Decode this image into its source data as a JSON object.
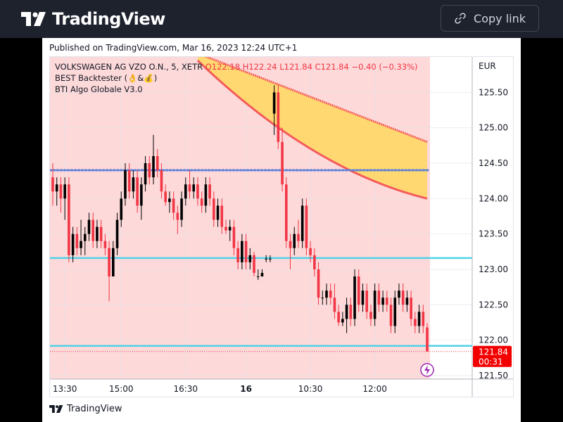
{
  "header": {
    "brand": "TradingView",
    "copy_link": "Copy link"
  },
  "published": "Published on TradingView.com, Mar 16, 2023 12:24 UTC+1",
  "footer": {
    "brand": "TradingView"
  },
  "legend": {
    "symbol": "VOLKSWAGEN AG VZO O.N., 5, XETR",
    "ohlc": "O122.18 H122.24 L121.84 C121.84 −0.40 (−0.33%)",
    "indicator1": "BEST Backtester (👌&💰)",
    "indicator2": "BTI Algo Globale V3.0"
  },
  "colors": {
    "up": "#000000",
    "down": "#f23645",
    "band": "#ffd75e",
    "band_line": "#f45b5b",
    "dotted": "#5b7fd9",
    "hline": "#4fd2e8",
    "bg_shade": "#fdd9d9"
  },
  "chart_data": {
    "type": "candlestick",
    "currency": "EUR",
    "last_price": "121.84",
    "countdown": "00:31",
    "y_ticks": [
      "125.50",
      "125.00",
      "124.50",
      "124.00",
      "123.50",
      "123.00",
      "122.50",
      "122.00",
      "121.50"
    ],
    "x_ticks": [
      "13:30",
      "15:00",
      "16:30",
      "16",
      "10:30",
      "12:00"
    ],
    "ylim": [
      121.45,
      126.0
    ],
    "levels": {
      "dotted_blue": 124.4,
      "cyan_upper": 123.16,
      "cyan_lower": 121.92
    },
    "candles": [
      [
        124.3,
        124.1,
        124.5,
        123.9
      ],
      [
        124.1,
        124.2,
        124.3,
        123.9
      ],
      [
        124.2,
        124.0,
        124.3,
        123.8
      ],
      [
        124.0,
        124.2,
        124.3,
        123.7
      ],
      [
        124.2,
        123.2,
        124.3,
        123.1
      ],
      [
        123.2,
        123.5,
        123.6,
        123.1
      ],
      [
        123.5,
        123.3,
        123.6,
        123.2
      ],
      [
        123.3,
        123.4,
        123.7,
        123.2
      ],
      [
        123.4,
        123.5,
        123.6,
        123.2
      ],
      [
        123.5,
        123.7,
        123.8,
        123.4
      ],
      [
        123.7,
        123.4,
        123.8,
        123.3
      ],
      [
        123.4,
        123.6,
        123.7,
        123.3
      ],
      [
        123.6,
        123.4,
        123.7,
        123.3
      ],
      [
        123.4,
        123.3,
        123.5,
        123.2
      ],
      [
        123.3,
        122.9,
        123.4,
        122.55
      ],
      [
        122.9,
        123.3,
        123.4,
        122.9
      ],
      [
        123.3,
        123.7,
        123.8,
        123.2
      ],
      [
        123.7,
        124.0,
        124.1,
        123.6
      ],
      [
        124.0,
        124.4,
        124.5,
        123.9
      ],
      [
        124.4,
        124.1,
        124.5,
        124.0
      ],
      [
        124.1,
        124.3,
        124.4,
        124.0
      ],
      [
        124.3,
        123.9,
        124.4,
        123.8
      ],
      [
        123.9,
        124.2,
        124.3,
        123.7
      ],
      [
        124.2,
        124.5,
        124.6,
        124.1
      ],
      [
        124.5,
        124.3,
        124.6,
        124.2
      ],
      [
        124.3,
        124.6,
        124.9,
        124.2
      ],
      [
        124.6,
        124.4,
        124.7,
        124.3
      ],
      [
        124.4,
        124.1,
        124.5,
        124.0
      ],
      [
        124.1,
        123.95,
        124.2,
        123.9
      ],
      [
        123.95,
        124.0,
        124.1,
        123.8
      ],
      [
        124.0,
        123.8,
        124.1,
        123.7
      ],
      [
        123.8,
        123.7,
        123.9,
        123.5
      ],
      [
        123.7,
        124.0,
        124.1,
        123.6
      ],
      [
        124.0,
        124.2,
        124.3,
        123.9
      ],
      [
        124.2,
        124.1,
        124.4,
        124.0
      ],
      [
        124.1,
        124.2,
        124.3,
        124.0
      ],
      [
        124.2,
        124.0,
        124.3,
        123.9
      ],
      [
        124.0,
        123.9,
        124.1,
        123.8
      ],
      [
        123.9,
        124.2,
        124.3,
        123.8
      ],
      [
        124.2,
        124.0,
        124.3,
        123.9
      ],
      [
        124.0,
        123.7,
        124.1,
        123.6
      ],
      [
        123.7,
        123.9,
        124.0,
        123.6
      ],
      [
        123.9,
        123.6,
        124.0,
        123.5
      ],
      [
        123.6,
        123.55,
        123.7,
        123.5
      ],
      [
        123.55,
        123.6,
        123.7,
        123.4
      ],
      [
        123.6,
        123.3,
        123.7,
        123.2
      ],
      [
        123.3,
        123.1,
        123.4,
        123.0
      ],
      [
        123.1,
        123.4,
        123.5,
        123.0
      ],
      [
        123.4,
        123.1,
        123.5,
        123.0
      ],
      [
        123.1,
        123.2,
        123.3,
        123.0
      ],
      [
        123.2,
        122.95,
        123.25,
        122.9
      ],
      [
        122.9,
        122.9,
        123.0,
        122.85
      ],
      [
        122.9,
        122.95,
        123.0,
        122.9
      ],
      [
        123.15,
        123.15,
        123.2,
        123.1
      ],
      [
        123.15,
        123.15,
        123.2,
        123.1
      ],
      [
        125.2,
        125.5,
        125.6,
        124.9
      ],
      [
        125.5,
        124.8,
        125.6,
        124.7
      ],
      [
        124.8,
        124.2,
        125.0,
        124.1
      ],
      [
        124.2,
        123.4,
        124.3,
        123.3
      ],
      [
        123.4,
        123.3,
        123.5,
        123.0
      ],
      [
        123.3,
        123.5,
        123.6,
        123.2
      ],
      [
        123.5,
        123.4,
        123.7,
        123.3
      ],
      [
        123.4,
        123.9,
        124.0,
        123.3
      ],
      [
        123.9,
        123.3,
        124.0,
        123.2
      ],
      [
        123.3,
        123.2,
        123.4,
        123.1
      ],
      [
        123.2,
        123.0,
        123.3,
        122.9
      ],
      [
        123.0,
        122.6,
        123.1,
        122.5
      ],
      [
        122.6,
        122.6,
        122.7,
        122.5
      ],
      [
        122.6,
        122.7,
        122.8,
        122.5
      ],
      [
        122.7,
        122.6,
        122.8,
        122.5
      ],
      [
        122.6,
        122.4,
        122.8,
        122.3
      ],
      [
        122.4,
        122.25,
        122.5,
        122.2
      ],
      [
        122.25,
        122.3,
        122.4,
        122.2
      ],
      [
        122.3,
        122.5,
        122.6,
        122.1
      ],
      [
        122.5,
        122.3,
        122.6,
        122.2
      ],
      [
        122.3,
        122.9,
        123.0,
        122.2
      ],
      [
        122.9,
        122.5,
        123.0,
        122.4
      ],
      [
        122.5,
        122.7,
        122.8,
        122.4
      ],
      [
        122.7,
        122.4,
        122.8,
        122.3
      ],
      [
        122.4,
        122.3,
        122.5,
        122.2
      ],
      [
        122.3,
        122.7,
        122.8,
        122.2
      ],
      [
        122.7,
        122.5,
        122.8,
        122.4
      ],
      [
        122.5,
        122.6,
        122.7,
        122.4
      ],
      [
        122.6,
        122.5,
        122.7,
        122.4
      ],
      [
        122.5,
        122.2,
        122.6,
        122.1
      ],
      [
        122.2,
        122.6,
        122.7,
        122.1
      ],
      [
        122.6,
        122.7,
        122.8,
        122.5
      ],
      [
        122.7,
        122.5,
        122.8,
        122.4
      ],
      [
        122.5,
        122.6,
        122.7,
        122.4
      ],
      [
        122.6,
        122.3,
        122.7,
        122.2
      ],
      [
        122.3,
        122.2,
        122.4,
        122.1
      ],
      [
        122.2,
        122.4,
        122.5,
        122.1
      ],
      [
        122.4,
        122.2,
        122.5,
        122.1
      ],
      [
        122.18,
        121.84,
        122.24,
        121.84
      ]
    ]
  }
}
